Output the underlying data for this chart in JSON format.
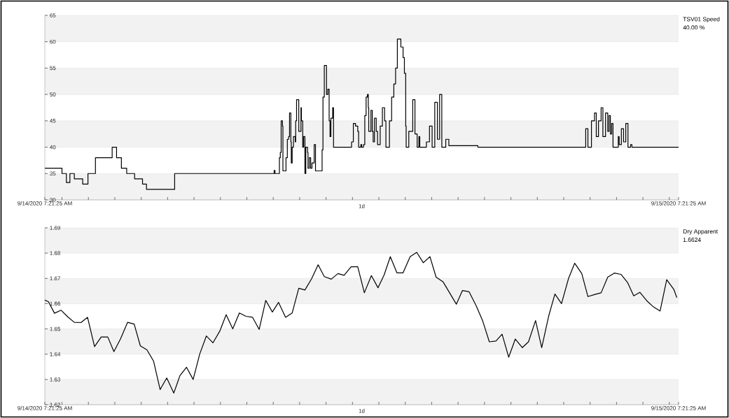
{
  "chart_data": [
    {
      "type": "step",
      "legend": "right",
      "grid": "y",
      "xlabel": "1d",
      "annotations": [
        "40.00 %"
      ],
      "series": [
        {
          "name": "TSV01 Speed",
          "color": "#000000",
          "x": [
            "2020-09-14T07:21",
            "2020-09-14T08:00",
            "2020-09-14T08:10",
            "2020-09-14T08:18",
            "2020-09-14T08:28",
            "2020-09-14T08:47",
            "2020-09-14T08:59",
            "2020-09-14T09:16",
            "2020-09-14T09:54",
            "2020-09-14T10:04",
            "2020-09-14T10:15",
            "2020-09-14T10:27",
            "2020-09-14T10:45",
            "2020-09-14T11:03",
            "2020-09-14T11:12",
            "2020-09-14T12:16",
            "2020-09-14T16:02",
            "2020-09-14T16:04",
            "2020-09-14T16:14",
            "2020-09-14T16:16",
            "2020-09-14T16:18",
            "2020-09-14T16:21",
            "2020-09-14T16:22",
            "2020-09-14T16:29",
            "2020-09-14T16:32",
            "2020-09-14T16:35",
            "2020-09-14T16:37",
            "2020-09-14T16:40",
            "2020-09-14T16:41",
            "2020-09-14T16:43",
            "2020-09-14T16:46",
            "2020-09-14T16:50",
            "2020-09-14T16:51",
            "2020-09-14T16:53",
            "2020-09-14T16:58",
            "2020-09-14T17:03",
            "2020-09-14T17:04",
            "2020-09-14T17:07",
            "2020-09-14T17:09",
            "2020-09-14T17:12",
            "2020-09-14T17:14",
            "2020-09-14T17:18",
            "2020-09-14T17:19",
            "2020-09-14T17:22",
            "2020-09-14T17:25",
            "2020-09-14T17:28",
            "2020-09-14T17:33",
            "2020-09-14T17:36",
            "2020-09-14T17:51",
            "2020-09-14T17:53",
            "2020-09-14T17:56",
            "2020-09-14T18:01",
            "2020-09-14T18:04",
            "2020-09-14T18:07",
            "2020-09-14T18:09",
            "2020-09-14T18:11",
            "2020-09-14T18:15",
            "2020-09-14T18:17",
            "2020-09-14T18:58",
            "2020-09-14T19:02",
            "2020-09-14T19:07",
            "2020-09-14T19:12",
            "2020-09-14T19:14",
            "2020-09-14T19:19",
            "2020-09-14T19:21",
            "2020-09-14T19:25",
            "2020-09-14T19:28",
            "2020-09-14T19:31",
            "2020-09-14T19:34",
            "2020-09-14T19:36",
            "2020-09-14T19:37",
            "2020-09-14T19:40",
            "2020-09-14T19:42",
            "2020-09-14T19:45",
            "2020-09-14T19:47",
            "2020-09-14T19:50",
            "2020-09-14T19:54",
            "2020-09-14T19:57",
            "2020-09-14T20:03",
            "2020-09-14T20:08",
            "2020-09-14T20:13",
            "2020-09-14T20:16",
            "2020-09-14T20:24",
            "2020-09-14T20:29",
            "2020-09-14T20:34",
            "2020-09-14T20:38",
            "2020-09-14T20:42",
            "2020-09-14T20:50",
            "2020-09-14T20:55",
            "2020-09-14T20:58",
            "2020-09-14T21:01",
            "2020-09-14T21:02",
            "2020-09-14T21:08",
            "2020-09-14T21:17",
            "2020-09-14T21:22",
            "2020-09-14T21:27",
            "2020-09-14T21:31",
            "2020-09-14T21:33",
            "2020-09-14T21:48",
            "2020-09-14T21:55",
            "2020-09-14T22:01",
            "2020-09-14T22:07",
            "2020-09-14T22:13",
            "2020-09-14T22:18",
            "2020-09-14T22:23",
            "2020-09-14T22:32",
            "2020-09-14T22:39",
            "2020-09-14T23:45",
            "2020-09-15T03:50",
            "2020-09-15T03:55",
            "2020-09-15T04:03",
            "2020-09-15T04:10",
            "2020-09-15T04:14",
            "2020-09-15T04:19",
            "2020-09-15T04:25",
            "2020-09-15T04:29",
            "2020-09-15T04:35",
            "2020-09-15T04:40",
            "2020-09-15T04:43",
            "2020-09-15T04:46",
            "2020-09-15T04:49",
            "2020-09-15T04:52",
            "2020-09-15T05:04",
            "2020-09-15T05:06",
            "2020-09-15T05:11",
            "2020-09-15T05:16",
            "2020-09-15T05:21",
            "2020-09-15T05:26",
            "2020-09-15T05:32",
            "2020-09-15T05:35",
            "2020-09-15T07:21"
          ],
          "values": [
            36,
            35,
            33.3,
            35,
            34,
            33,
            35,
            38,
            40,
            38,
            36,
            35,
            34,
            33,
            32,
            35,
            35.6,
            35,
            38,
            39,
            45,
            44,
            35.5,
            38,
            41.5,
            42,
            46.5,
            41,
            37,
            40,
            42,
            41,
            45,
            49,
            43,
            47.5,
            45,
            40,
            42,
            35,
            40,
            39,
            36,
            38,
            36,
            37,
            40.5,
            35.5,
            39.5,
            49.5,
            55.5,
            50,
            51,
            45,
            42,
            45.5,
            47.5,
            40,
            41,
            44.5,
            44,
            43,
            40,
            40.5,
            40,
            40.5,
            46,
            49.5,
            50,
            47.5,
            43,
            43,
            47,
            43,
            41,
            45.5,
            43,
            40.5,
            44,
            47.5,
            45,
            40,
            45,
            49.5,
            52,
            55,
            60.5,
            59,
            57,
            54,
            44,
            40,
            43,
            49,
            42.5,
            40,
            42,
            40,
            41,
            44,
            40,
            48.5,
            41.5,
            50,
            40,
            41.5,
            40.3,
            40,
            43.5,
            40,
            45,
            46.5,
            42,
            45,
            47.5,
            42,
            46.5,
            43,
            46,
            42.5,
            44.5,
            40,
            42,
            40.5,
            43.5,
            41,
            44.5,
            40,
            40.5,
            40,
            40
          ]
        }
      ],
      "xlim": [
        "2020-09-14T07:21",
        "2020-09-15T07:21"
      ],
      "xticks": [
        {
          "value": "2020-09-14T07:21",
          "label": "9/14/2020 7:21:25 AM"
        },
        {
          "value": "2020-09-14T08:00",
          "label": null
        },
        {
          "value": "2020-09-14T09:00",
          "label": null
        },
        {
          "value": "2020-09-14T10:00",
          "label": null
        },
        {
          "value": "2020-09-14T11:00",
          "label": null
        },
        {
          "value": "2020-09-14T12:00",
          "label": null
        },
        {
          "value": "2020-09-14T13:00",
          "label": null
        },
        {
          "value": "2020-09-14T14:00",
          "label": null
        },
        {
          "value": "2020-09-14T15:00",
          "label": null
        },
        {
          "value": "2020-09-14T16:00",
          "label": null
        },
        {
          "value": "2020-09-14T17:00",
          "label": null
        },
        {
          "value": "2020-09-14T18:00",
          "label": null
        },
        {
          "value": "2020-09-14T19:00",
          "label": null
        },
        {
          "value": "2020-09-14T20:00",
          "label": null
        },
        {
          "value": "2020-09-14T21:00",
          "label": null
        },
        {
          "value": "2020-09-14T22:00",
          "label": null
        },
        {
          "value": "2020-09-14T23:00",
          "label": null
        },
        {
          "value": "2020-09-15T00:00",
          "label": null
        },
        {
          "value": "2020-09-15T01:00",
          "label": null
        },
        {
          "value": "2020-09-15T02:00",
          "label": null
        },
        {
          "value": "2020-09-15T03:00",
          "label": null
        },
        {
          "value": "2020-09-15T04:00",
          "label": null
        },
        {
          "value": "2020-09-15T05:00",
          "label": null
        },
        {
          "value": "2020-09-15T06:00",
          "label": null
        },
        {
          "value": "2020-09-15T07:00",
          "label": null
        },
        {
          "value": "2020-09-15T07:21",
          "label": "9/15/2020 7:21:25 AM"
        }
      ],
      "ylim": [
        30,
        65
      ],
      "yticks": [
        30,
        35,
        40,
        45,
        50,
        55,
        60,
        65
      ]
    },
    {
      "type": "line",
      "legend": "right",
      "grid": "y",
      "xlabel": "1d",
      "annotations": [
        "1.6624"
      ],
      "series": [
        {
          "name": "Dry Apparent",
          "color": "#000000",
          "x": [
            "2020-09-14T07:21",
            "2020-09-14T07:29",
            "2020-09-14T07:43",
            "2020-09-14T07:58",
            "2020-09-14T08:13",
            "2020-09-14T08:28",
            "2020-09-14T08:43",
            "2020-09-14T08:58",
            "2020-09-14T09:14",
            "2020-09-14T09:29",
            "2020-09-14T09:44",
            "2020-09-14T09:58",
            "2020-09-14T10:13",
            "2020-09-14T10:29",
            "2020-09-14T10:44",
            "2020-09-14T10:58",
            "2020-09-14T11:13",
            "2020-09-14T11:28",
            "2020-09-14T11:43",
            "2020-09-14T11:58",
            "2020-09-14T12:14",
            "2020-09-14T12:28",
            "2020-09-14T12:43",
            "2020-09-14T12:58",
            "2020-09-14T13:13",
            "2020-09-14T13:28",
            "2020-09-14T13:43",
            "2020-09-14T13:59",
            "2020-09-14T14:13",
            "2020-09-14T14:28",
            "2020-09-14T14:43",
            "2020-09-14T14:58",
            "2020-09-14T15:13",
            "2020-09-14T15:28",
            "2020-09-14T15:43",
            "2020-09-14T15:58",
            "2020-09-14T16:12",
            "2020-09-14T16:28",
            "2020-09-14T16:43",
            "2020-09-14T16:58",
            "2020-09-14T17:12",
            "2020-09-14T17:27",
            "2020-09-14T17:42",
            "2020-09-14T17:56",
            "2020-09-14T18:12",
            "2020-09-14T18:27",
            "2020-09-14T18:41",
            "2020-09-14T18:57",
            "2020-09-14T19:12",
            "2020-09-14T19:27",
            "2020-09-14T19:43",
            "2020-09-14T19:58",
            "2020-09-14T20:12",
            "2020-09-14T20:26",
            "2020-09-14T20:41",
            "2020-09-14T20:55",
            "2020-09-14T21:11",
            "2020-09-14T21:26",
            "2020-09-14T21:41",
            "2020-09-14T21:56",
            "2020-09-14T22:10",
            "2020-09-14T22:26",
            "2020-09-14T22:40",
            "2020-09-14T22:56",
            "2020-09-14T23:10",
            "2020-09-14T23:25",
            "2020-09-14T23:41",
            "2020-09-14T23:56",
            "2020-09-15T00:11",
            "2020-09-15T00:26",
            "2020-09-15T00:40",
            "2020-09-15T00:55",
            "2020-09-15T01:10",
            "2020-09-15T01:26",
            "2020-09-15T01:40",
            "2020-09-15T01:56",
            "2020-09-15T02:10",
            "2020-09-15T02:26",
            "2020-09-15T02:40",
            "2020-09-15T02:55",
            "2020-09-15T03:11",
            "2020-09-15T03:25",
            "2020-09-15T03:41",
            "2020-09-15T03:55",
            "2020-09-15T04:10",
            "2020-09-15T04:25",
            "2020-09-15T04:40",
            "2020-09-15T04:55",
            "2020-09-15T05:10",
            "2020-09-15T05:25",
            "2020-09-15T05:39",
            "2020-09-15T05:53",
            "2020-09-15T06:09",
            "2020-09-15T06:24",
            "2020-09-15T06:39",
            "2020-09-15T06:54",
            "2020-09-15T07:10",
            "2020-09-15T07:17"
          ],
          "values": [
            1.6614,
            1.6608,
            1.6562,
            1.6574,
            1.6548,
            1.6526,
            1.6525,
            1.6546,
            1.643,
            1.6468,
            1.6468,
            1.641,
            1.6461,
            1.6526,
            1.6519,
            1.6433,
            1.6417,
            1.6373,
            1.626,
            1.6306,
            1.6246,
            1.6315,
            1.6348,
            1.63,
            1.6401,
            1.6472,
            1.6445,
            1.6493,
            1.6556,
            1.65,
            1.6563,
            1.655,
            1.6546,
            1.6498,
            1.6613,
            1.6567,
            1.6605,
            1.6546,
            1.6563,
            1.6661,
            1.6654,
            1.6698,
            1.6754,
            1.6707,
            1.6697,
            1.6719,
            1.6712,
            1.6746,
            1.6746,
            1.6643,
            1.6711,
            1.6663,
            1.6714,
            1.6786,
            1.6722,
            1.6722,
            1.6786,
            1.6803,
            1.6762,
            1.6786,
            1.6705,
            1.6686,
            1.6645,
            1.6598,
            1.6652,
            1.6647,
            1.6592,
            1.6531,
            1.6449,
            1.6452,
            1.6479,
            1.6388,
            1.646,
            1.6426,
            1.6449,
            1.6533,
            1.6426,
            1.6552,
            1.6638,
            1.66,
            1.67,
            1.676,
            1.6719,
            1.6628,
            1.6636,
            1.6643,
            1.6705,
            1.6721,
            1.6716,
            1.6684,
            1.6631,
            1.6645,
            1.6611,
            1.6587,
            1.6571,
            1.6695,
            1.6657,
            1.6624
          ]
        }
      ],
      "xlim": [
        "2020-09-14T07:21",
        "2020-09-15T07:21"
      ],
      "xticks": [
        {
          "value": "2020-09-14T07:21",
          "label": "9/14/2020 7:21:25 AM"
        },
        {
          "value": "2020-09-14T08:00",
          "label": null
        },
        {
          "value": "2020-09-14T09:00",
          "label": null
        },
        {
          "value": "2020-09-14T10:00",
          "label": null
        },
        {
          "value": "2020-09-14T11:00",
          "label": null
        },
        {
          "value": "2020-09-14T12:00",
          "label": null
        },
        {
          "value": "2020-09-14T13:00",
          "label": null
        },
        {
          "value": "2020-09-14T14:00",
          "label": null
        },
        {
          "value": "2020-09-14T15:00",
          "label": null
        },
        {
          "value": "2020-09-14T16:00",
          "label": null
        },
        {
          "value": "2020-09-14T17:00",
          "label": null
        },
        {
          "value": "2020-09-14T18:00",
          "label": null
        },
        {
          "value": "2020-09-14T19:00",
          "label": null
        },
        {
          "value": "2020-09-14T20:00",
          "label": null
        },
        {
          "value": "2020-09-14T21:00",
          "label": null
        },
        {
          "value": "2020-09-14T22:00",
          "label": null
        },
        {
          "value": "2020-09-14T23:00",
          "label": null
        },
        {
          "value": "2020-09-15T00:00",
          "label": null
        },
        {
          "value": "2020-09-15T01:00",
          "label": null
        },
        {
          "value": "2020-09-15T02:00",
          "label": null
        },
        {
          "value": "2020-09-15T03:00",
          "label": null
        },
        {
          "value": "2020-09-15T04:00",
          "label": null
        },
        {
          "value": "2020-09-15T05:00",
          "label": null
        },
        {
          "value": "2020-09-15T06:00",
          "label": null
        },
        {
          "value": "2020-09-15T07:00",
          "label": null
        },
        {
          "value": "2020-09-15T07:21",
          "label": "9/15/2020 7:21:25 AM"
        }
      ],
      "ylim": [
        1.62,
        1.69
      ],
      "yticks": [
        1.62,
        1.63,
        1.64,
        1.65,
        1.66,
        1.67,
        1.68,
        1.69
      ]
    }
  ]
}
